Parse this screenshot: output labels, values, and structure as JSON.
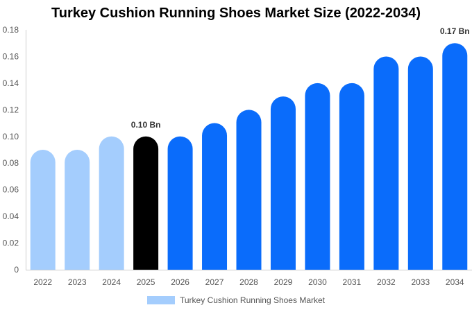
{
  "chart_data": {
    "type": "bar",
    "title": "Turkey Cushion Running Shoes Market Size (2022-2034)",
    "categories": [
      "2022",
      "2023",
      "2024",
      "2025",
      "2026",
      "2027",
      "2028",
      "2029",
      "2030",
      "2031",
      "2032",
      "2033",
      "2034"
    ],
    "series": [
      {
        "name": "Turkey Cushion Running Shoes Market",
        "values": [
          0.09,
          0.09,
          0.1,
          0.1,
          0.1,
          0.11,
          0.12,
          0.13,
          0.14,
          0.14,
          0.16,
          0.16,
          0.17
        ]
      }
    ],
    "bar_colors": [
      "#a4cdfd",
      "#a4cdfd",
      "#a4cdfd",
      "#000000",
      "#0a6cfb",
      "#0a6cfb",
      "#0a6cfb",
      "#0a6cfb",
      "#0a6cfb",
      "#0a6cfb",
      "#0a6cfb",
      "#0a6cfb",
      "#0a6cfb"
    ],
    "legend_color": "#a4cdfd",
    "data_labels": [
      {
        "index": 3,
        "text": "0.10 Bn"
      },
      {
        "index": 12,
        "text": "0.17 Bn"
      }
    ],
    "y_ticks": [
      "0",
      "0.02",
      "0.04",
      "0.06",
      "0.08",
      "0.10",
      "0.12",
      "0.14",
      "0.16",
      "0.18"
    ],
    "ylim": [
      0,
      0.18
    ],
    "xlabel": "",
    "ylabel": "",
    "grid": false,
    "legend_position": "bottom"
  }
}
